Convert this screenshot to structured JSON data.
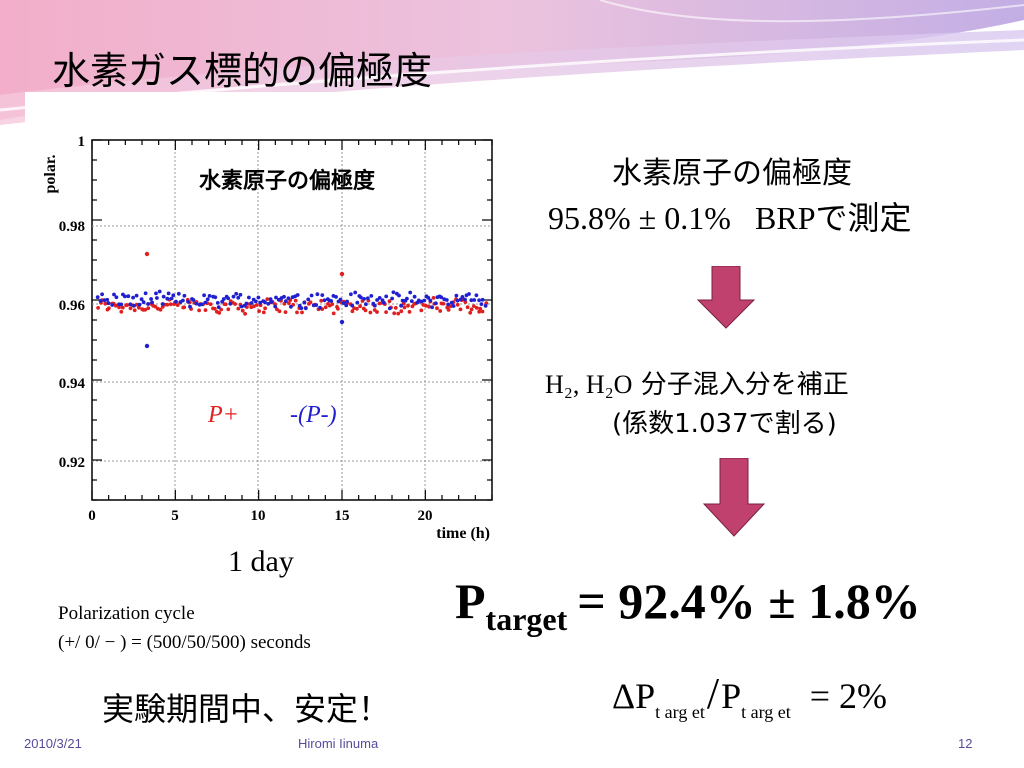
{
  "slide": {
    "title": "水素ガス標的の偏極度",
    "plot": {
      "y_label": "polar.",
      "x_label": "time (h)",
      "inner_label": "水素原子の偏極度",
      "legend_pplus": "P+",
      "legend_pminus": "-(P-)",
      "below_label": "1 day",
      "x_ticks": [
        "0",
        "5",
        "10",
        "15",
        "20"
      ],
      "y_ticks": [
        "0.98",
        "0.96",
        "0.94",
        "0.92"
      ],
      "y_top_tick": "1"
    },
    "note_line1": "Polarization cycle",
    "note_line2": "(+/ 0/ − ) = (500/50/500) seconds",
    "stable_text": "実験期間中、安定！",
    "right": {
      "heading": "水素原子の偏極度",
      "measure_value": "95.8% ± 0.1%",
      "measure_suffix": "BRPで測定",
      "correction_formula": "H₂, H₂O",
      "correction_text": "分子混入分を補正",
      "coef_text": "(係数1.037で割る)",
      "result_sym": "P",
      "result_sub": "target",
      "result_value": "= 92.4% ± 1.8%",
      "rel_delta": "ΔP",
      "rel_sub1": "t arg et",
      "rel_slash": "/",
      "rel_p": "P",
      "rel_sub2": "t arg et",
      "rel_value": "= 2%"
    },
    "footer": {
      "date": "2010/3/21",
      "author": "Hiromi Iinuma",
      "page": "12"
    },
    "colors": {
      "arrow": "#c0406e",
      "pplus": "#e02020",
      "pminus": "#2020d0",
      "footer": "#5a4a9a"
    }
  },
  "chart_data": {
    "type": "scatter",
    "xlabel": "time (h)",
    "ylabel": "polar.",
    "xlim": [
      0,
      24
    ],
    "ylim": [
      0.91,
      1.0
    ],
    "series": [
      {
        "name": "P+",
        "color": "#e02020",
        "mean": 0.9585,
        "outliers": [
          [
            3.3,
            0.9715
          ],
          [
            15.0,
            0.9665
          ]
        ]
      },
      {
        "name": "-(P-)",
        "color": "#2020d0",
        "mean": 0.96,
        "outliers": [
          [
            3.3,
            0.9485
          ],
          [
            15.0,
            0.9545
          ]
        ]
      }
    ]
  }
}
